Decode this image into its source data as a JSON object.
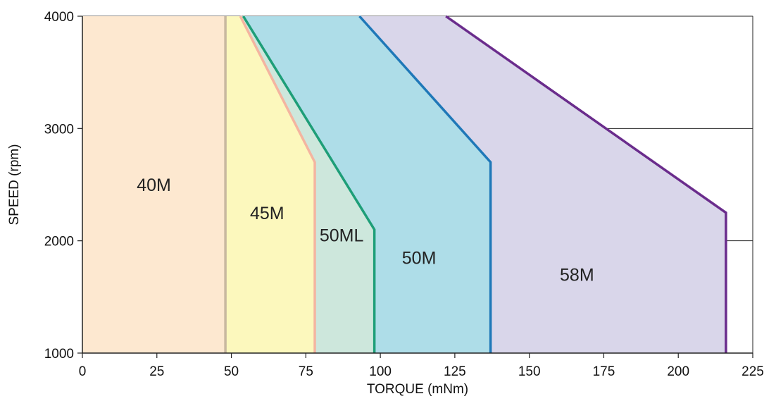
{
  "chart_data": {
    "type": "area",
    "xlabel": "TORQUE (mNm)",
    "ylabel": "SPEED (rpm)",
    "xlim": [
      0,
      225
    ],
    "ylim": [
      1000,
      4000
    ],
    "xticks": [
      0,
      25,
      50,
      75,
      100,
      125,
      150,
      175,
      200,
      225
    ],
    "xtick_labels": [
      "0",
      "25",
      "50",
      "75",
      "100",
      "125",
      "150",
      "175",
      "200",
      "225"
    ],
    "yticks": [
      1000,
      2000,
      3000,
      4000
    ],
    "ytick_labels": [
      "1000",
      "2000",
      "3000",
      "4000"
    ],
    "grid_lines_y": [
      2000,
      3000
    ],
    "series": [
      {
        "name": "58M",
        "fill": "#d9d6ea",
        "stroke": "#6a2c8c",
        "points": [
          [
            0,
            4000
          ],
          [
            122,
            4000
          ],
          [
            216,
            2250
          ],
          [
            216,
            1000
          ],
          [
            0,
            1000
          ]
        ],
        "label_at": [
          166,
          1700
        ]
      },
      {
        "name": "50M",
        "fill": "#aedde8",
        "stroke": "#1f78b8",
        "points": [
          [
            0,
            4000
          ],
          [
            93,
            4000
          ],
          [
            137,
            2700
          ],
          [
            137,
            1000
          ],
          [
            0,
            1000
          ]
        ],
        "label_at": [
          113,
          1850
        ]
      },
      {
        "name": "50ML",
        "fill": "#cde7dc",
        "stroke": "#1e9e78",
        "points": [
          [
            0,
            4000
          ],
          [
            54,
            4000
          ],
          [
            98,
            2100
          ],
          [
            98,
            1000
          ],
          [
            0,
            1000
          ]
        ],
        "label_at": [
          87,
          2050
        ]
      },
      {
        "name": "45M",
        "fill": "#fcf8bd",
        "stroke": "#f4b5a0",
        "points": [
          [
            0,
            4000
          ],
          [
            53,
            4000
          ],
          [
            78,
            2700
          ],
          [
            78,
            1000
          ],
          [
            0,
            1000
          ]
        ],
        "label_at": [
          62,
          2250
        ]
      },
      {
        "name": "40M",
        "fill": "#fde8d0",
        "stroke": "#c8b8a0",
        "points": [
          [
            0,
            4000
          ],
          [
            48,
            4000
          ],
          [
            48,
            1000
          ],
          [
            0,
            1000
          ]
        ],
        "label_at": [
          24,
          2500
        ]
      }
    ]
  }
}
